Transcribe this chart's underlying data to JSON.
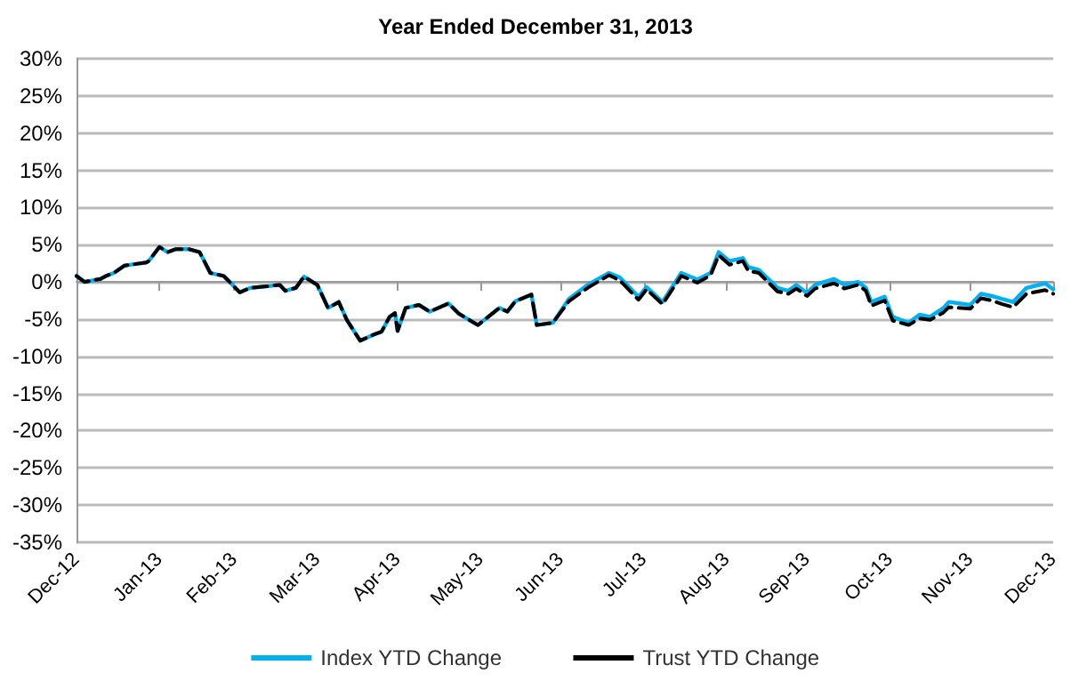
{
  "chart_data": {
    "type": "line",
    "title": "Year Ended December 31, 2013",
    "x": [
      "2012-12-31",
      "2013-01-03",
      "2013-01-09",
      "2013-01-11",
      "2013-01-14",
      "2013-01-18",
      "2013-01-26",
      "2013-01-27",
      "2013-01-31",
      "2013-02-03",
      "2013-02-06",
      "2013-02-11",
      "2013-02-15",
      "2013-02-19",
      "2013-02-24",
      "2013-03-02",
      "2013-03-06",
      "2013-03-12",
      "2013-03-17",
      "2013-03-19",
      "2013-03-23",
      "2013-03-26",
      "2013-03-31",
      "2013-04-04",
      "2013-04-08",
      "2013-04-11",
      "2013-04-16",
      "2013-04-21",
      "2013-04-24",
      "2013-04-27",
      "2013-04-29",
      "2013-04-30",
      "2013-05-03",
      "2013-05-08",
      "2013-05-12",
      "2013-05-19",
      "2013-05-23",
      "2013-05-30",
      "2013-06-07",
      "2013-06-10",
      "2013-06-13",
      "2013-06-19",
      "2013-06-21",
      "2013-06-27",
      "2013-07-03",
      "2013-07-10",
      "2013-07-18",
      "2013-07-22",
      "2013-07-29",
      "2013-08-01",
      "2013-08-07",
      "2013-08-14",
      "2013-08-20",
      "2013-08-25",
      "2013-08-28",
      "2013-09-01",
      "2013-09-06",
      "2013-09-08",
      "2013-09-12",
      "2013-09-19",
      "2013-09-23",
      "2013-09-26",
      "2013-09-30",
      "2013-10-03",
      "2013-10-10",
      "2013-10-14",
      "2013-10-19",
      "2013-10-22",
      "2013-10-24",
      "2013-10-29",
      "2013-11-01",
      "2013-11-07",
      "2013-11-11",
      "2013-11-15",
      "2013-11-20",
      "2013-11-22",
      "2013-11-30",
      "2013-12-04",
      "2013-12-08",
      "2013-12-12",
      "2013-12-16",
      "2013-12-21",
      "2013-12-28",
      "2013-12-31"
    ],
    "series": [
      {
        "name": "Index YTD Change",
        "color": "#00b0f0",
        "line_style": "solid",
        "values": [
          0.8,
          0.0,
          0.4,
          0.8,
          1.2,
          2.2,
          2.6,
          2.8,
          4.7,
          4.0,
          4.4,
          4.4,
          4.0,
          1.2,
          0.8,
          -1.4,
          -0.8,
          -0.6,
          -0.4,
          -1.2,
          -0.8,
          0.7,
          -0.4,
          -3.5,
          -2.7,
          -5.1,
          -7.9,
          -7.1,
          -6.7,
          -4.7,
          -4.2,
          -6.6,
          -3.5,
          -3.1,
          -4.0,
          -2.9,
          -4.3,
          -5.8,
          -3.5,
          -4.0,
          -2.6,
          -1.7,
          -5.8,
          -5.5,
          -2.3,
          -0.4,
          1.2,
          0.6,
          -2.0,
          -0.7,
          -2.7,
          1.2,
          0.3,
          1.2,
          4.0,
          2.8,
          3.2,
          2.0,
          1.6,
          -0.8,
          -1.2,
          -0.4,
          -1.5,
          -0.4,
          0.4,
          -0.4,
          0.0,
          -0.8,
          -2.7,
          -2.0,
          -4.7,
          -5.5,
          -4.4,
          -4.7,
          -3.5,
          -2.7,
          -3.1,
          -1.6,
          -1.9,
          -2.3,
          -2.7,
          -0.8,
          -0.2,
          -1.0
        ]
      },
      {
        "name": "Trust YTD Change",
        "color": "#000000",
        "line_style": "dashed",
        "values": [
          0.8,
          0.0,
          0.4,
          0.8,
          1.2,
          2.2,
          2.6,
          2.8,
          4.7,
          4.0,
          4.4,
          4.4,
          4.0,
          1.2,
          0.8,
          -1.4,
          -0.8,
          -0.6,
          -0.4,
          -1.2,
          -0.8,
          0.7,
          -0.4,
          -3.5,
          -2.7,
          -5.1,
          -7.9,
          -7.1,
          -6.7,
          -4.7,
          -4.2,
          -6.6,
          -3.5,
          -3.1,
          -4.0,
          -2.9,
          -4.3,
          -5.8,
          -3.5,
          -4.0,
          -2.6,
          -1.7,
          -5.8,
          -5.5,
          -2.6,
          -0.8,
          0.9,
          0.2,
          -2.4,
          -1.0,
          -3.0,
          0.8,
          -0.1,
          0.9,
          3.6,
          2.3,
          2.8,
          1.5,
          1.2,
          -1.3,
          -1.6,
          -0.9,
          -1.9,
          -0.9,
          -0.2,
          -0.9,
          -0.4,
          -1.2,
          -3.2,
          -2.5,
          -5.2,
          -5.8,
          -4.9,
          -5.1,
          -4.1,
          -3.4,
          -3.6,
          -2.2,
          -2.5,
          -3.0,
          -3.4,
          -1.6,
          -1.1,
          -1.6
        ]
      }
    ],
    "xlim": [
      "2012-12-31",
      "2013-12-31"
    ],
    "xticks": [
      {
        "value": "2012-12-31",
        "label": "Dec-12"
      },
      {
        "value": "2013-01-31",
        "label": "Jan-13"
      },
      {
        "value": "2013-02-28",
        "label": "Feb-13"
      },
      {
        "value": "2013-03-31",
        "label": "Mar-13"
      },
      {
        "value": "2013-04-30",
        "label": "Apr-13"
      },
      {
        "value": "2013-05-31",
        "label": "May-13"
      },
      {
        "value": "2013-06-30",
        "label": "Jun-13"
      },
      {
        "value": "2013-07-31",
        "label": "Jul-13"
      },
      {
        "value": "2013-08-31",
        "label": "Aug-13"
      },
      {
        "value": "2013-09-30",
        "label": "Sep-13"
      },
      {
        "value": "2013-10-31",
        "label": "Oct-13"
      },
      {
        "value": "2013-11-30",
        "label": "Nov-13"
      },
      {
        "value": "2013-12-31",
        "label": "Dec-13"
      }
    ],
    "ylim": [
      -35,
      30
    ],
    "yticks": [
      {
        "value": -35,
        "label": "-35%"
      },
      {
        "value": -30,
        "label": "-30%"
      },
      {
        "value": -25,
        "label": "-25%"
      },
      {
        "value": -20,
        "label": "-20%"
      },
      {
        "value": -15,
        "label": "-15%"
      },
      {
        "value": -10,
        "label": "-10%"
      },
      {
        "value": -5,
        "label": "-5%"
      },
      {
        "value": 0,
        "label": "0%"
      },
      {
        "value": 5,
        "label": "5%"
      },
      {
        "value": 10,
        "label": "10%"
      },
      {
        "value": 15,
        "label": "15%"
      },
      {
        "value": 20,
        "label": "20%"
      },
      {
        "value": 25,
        "label": "25%"
      },
      {
        "value": 30,
        "label": "30%"
      }
    ],
    "grid": "y",
    "legend": "bottom",
    "marker": "none"
  }
}
